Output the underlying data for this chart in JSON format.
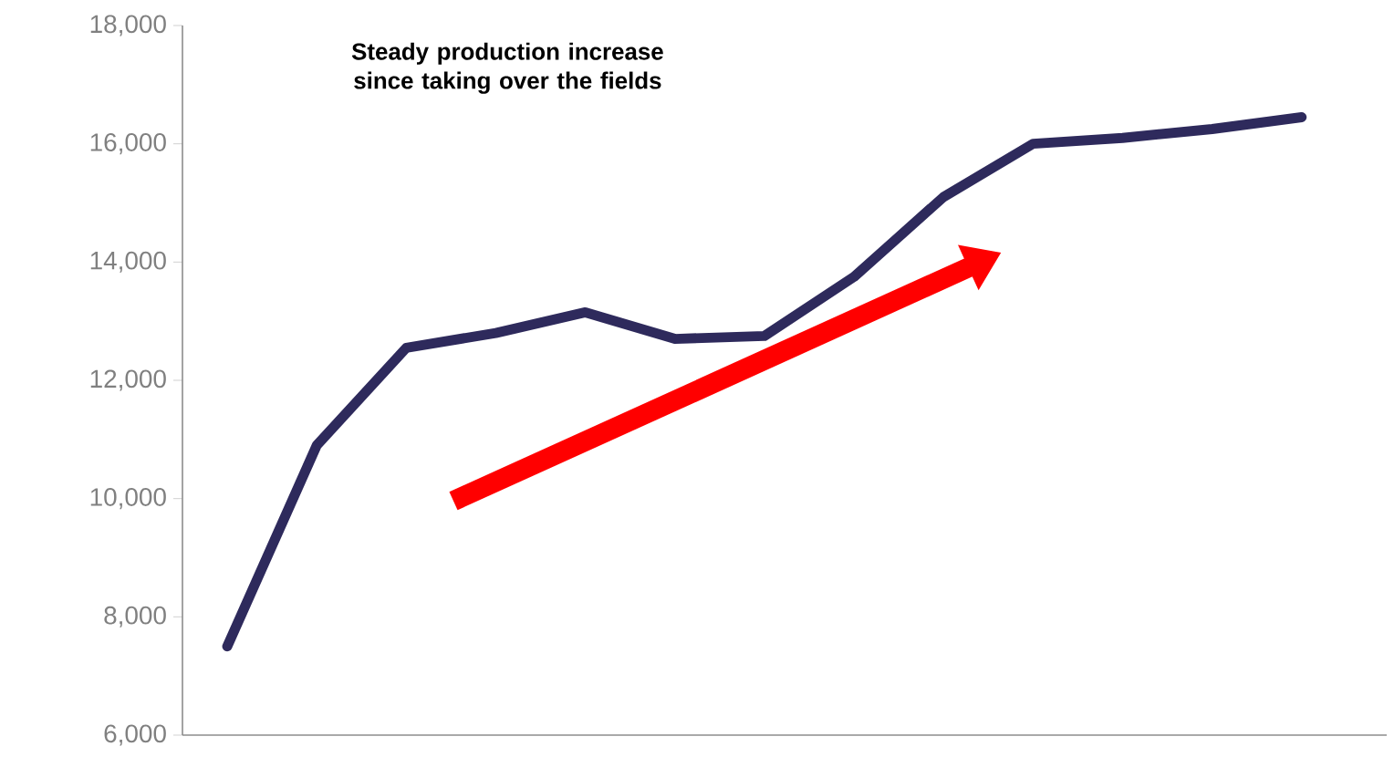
{
  "chart_data": {
    "type": "line",
    "title": "Steady production increase since taking over the fields",
    "categories": [
      null,
      null,
      null,
      null,
      null,
      null,
      null,
      null,
      null,
      null,
      null,
      null,
      null
    ],
    "series": [
      {
        "color": "#2e2a5c",
        "values": [
          7500,
          10900,
          12550,
          12800,
          13150,
          12700,
          12750,
          13750,
          15100,
          16000,
          16100,
          16250,
          16450
        ]
      }
    ],
    "ylim": [
      6000,
      18000
    ],
    "yticks": [
      {
        "value": 6000,
        "label": "6,000"
      },
      {
        "value": 8000,
        "label": "8,000"
      },
      {
        "value": 10000,
        "label": "10,000"
      },
      {
        "value": 12000,
        "label": "12,000"
      },
      {
        "value": 14000,
        "label": "14,000"
      },
      {
        "value": 16000,
        "label": "16,000"
      },
      {
        "value": 18000,
        "label": "18,000"
      }
    ],
    "tick_labels": "y",
    "marker": "none",
    "line_style": "solid"
  }
}
